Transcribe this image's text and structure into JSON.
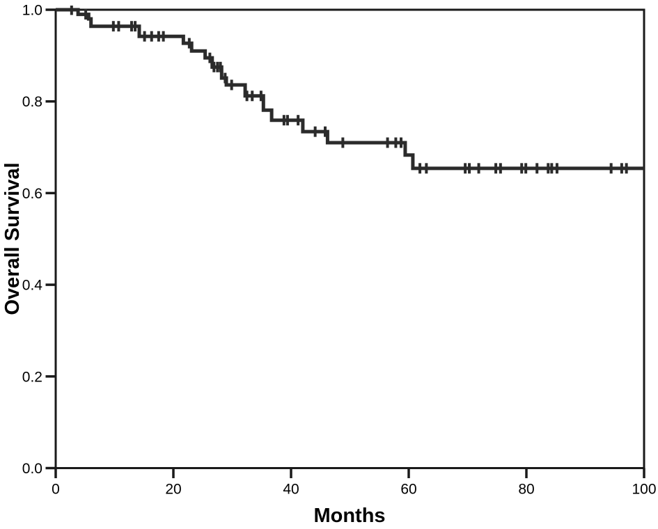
{
  "figure": {
    "background": "#ffffff",
    "frame_color": "#1a1a1a",
    "text_color": "#000000"
  },
  "chart_data": {
    "type": "line",
    "subtype": "kaplan-meier-step",
    "title": "",
    "xlabel": "Months",
    "ylabel": "Overall Survival",
    "xlim": [
      0,
      100
    ],
    "ylim": [
      0.0,
      1.0
    ],
    "grid": false,
    "frame": true,
    "legend": null,
    "x_ticks": {
      "values": [
        0,
        20,
        40,
        60,
        80,
        100
      ],
      "labels": [
        "0",
        "20",
        "40",
        "60",
        "80",
        "100"
      ]
    },
    "y_ticks": {
      "values": [
        0.0,
        0.2,
        0.4,
        0.6,
        0.8,
        1.0
      ],
      "labels": [
        "0.0",
        "0.2",
        "0.4",
        "0.6",
        "0.8",
        "1.0"
      ]
    },
    "series": [
      {
        "name": "Overall Survival",
        "color": "#2b2b2b",
        "start": {
          "t": 0,
          "s": 1.0
        },
        "end_t": 100,
        "drops": [
          {
            "t": 3.8,
            "s": 0.99
          },
          {
            "t": 5.6,
            "s": 0.98
          },
          {
            "t": 6.0,
            "s": 0.964
          },
          {
            "t": 14.2,
            "s": 0.942
          },
          {
            "t": 21.7,
            "s": 0.927
          },
          {
            "t": 23.1,
            "s": 0.91
          },
          {
            "t": 25.4,
            "s": 0.895
          },
          {
            "t": 26.6,
            "s": 0.875
          },
          {
            "t": 28.2,
            "s": 0.851
          },
          {
            "t": 29.0,
            "s": 0.836
          },
          {
            "t": 32.2,
            "s": 0.812
          },
          {
            "t": 35.3,
            "s": 0.781
          },
          {
            "t": 36.7,
            "s": 0.759
          },
          {
            "t": 42.0,
            "s": 0.734
          },
          {
            "t": 46.2,
            "s": 0.71
          },
          {
            "t": 59.4,
            "s": 0.683
          },
          {
            "t": 60.7,
            "s": 0.654
          }
        ],
        "censor_marks": [
          {
            "t": 2.7,
            "s": 1.0
          },
          {
            "t": 5.1,
            "s": 0.99
          },
          {
            "t": 9.8,
            "s": 0.964
          },
          {
            "t": 10.7,
            "s": 0.964
          },
          {
            "t": 12.9,
            "s": 0.964
          },
          {
            "t": 13.5,
            "s": 0.964
          },
          {
            "t": 15.1,
            "s": 0.942
          },
          {
            "t": 16.3,
            "s": 0.942
          },
          {
            "t": 17.5,
            "s": 0.942
          },
          {
            "t": 18.3,
            "s": 0.942
          },
          {
            "t": 22.7,
            "s": 0.927
          },
          {
            "t": 26.2,
            "s": 0.895
          },
          {
            "t": 26.9,
            "s": 0.875
          },
          {
            "t": 27.5,
            "s": 0.875
          },
          {
            "t": 28.0,
            "s": 0.875
          },
          {
            "t": 28.8,
            "s": 0.851
          },
          {
            "t": 29.9,
            "s": 0.836
          },
          {
            "t": 32.5,
            "s": 0.812
          },
          {
            "t": 33.4,
            "s": 0.812
          },
          {
            "t": 34.9,
            "s": 0.812
          },
          {
            "t": 38.8,
            "s": 0.759
          },
          {
            "t": 39.4,
            "s": 0.759
          },
          {
            "t": 41.2,
            "s": 0.759
          },
          {
            "t": 44.1,
            "s": 0.734
          },
          {
            "t": 45.8,
            "s": 0.734
          },
          {
            "t": 48.8,
            "s": 0.71
          },
          {
            "t": 56.4,
            "s": 0.71
          },
          {
            "t": 57.8,
            "s": 0.71
          },
          {
            "t": 58.7,
            "s": 0.71
          },
          {
            "t": 61.9,
            "s": 0.654
          },
          {
            "t": 63.0,
            "s": 0.654
          },
          {
            "t": 69.6,
            "s": 0.654
          },
          {
            "t": 70.3,
            "s": 0.654
          },
          {
            "t": 71.9,
            "s": 0.654
          },
          {
            "t": 74.8,
            "s": 0.654
          },
          {
            "t": 75.6,
            "s": 0.654
          },
          {
            "t": 79.2,
            "s": 0.654
          },
          {
            "t": 79.9,
            "s": 0.654
          },
          {
            "t": 81.8,
            "s": 0.654
          },
          {
            "t": 83.7,
            "s": 0.654
          },
          {
            "t": 84.3,
            "s": 0.654
          },
          {
            "t": 85.2,
            "s": 0.654
          },
          {
            "t": 94.4,
            "s": 0.654
          },
          {
            "t": 96.2,
            "s": 0.654
          },
          {
            "t": 97.0,
            "s": 0.654
          }
        ]
      }
    ]
  }
}
